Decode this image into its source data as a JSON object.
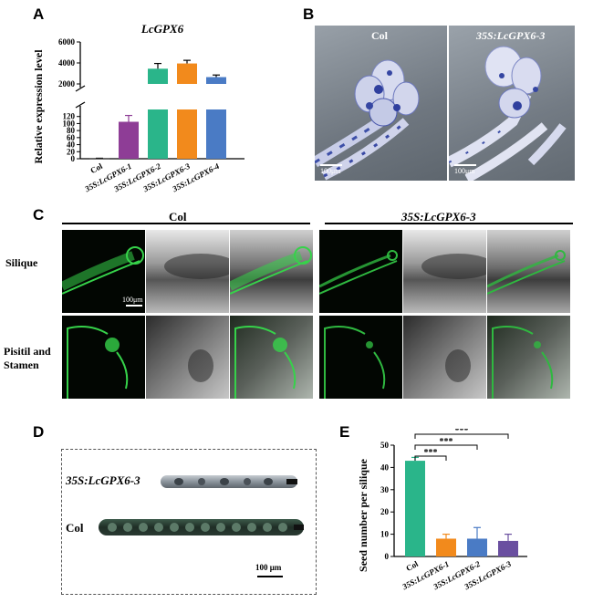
{
  "panels": {
    "a": "A",
    "b": "B",
    "c": "C",
    "d": "D",
    "e": "E"
  },
  "panel_a": {
    "chart_data": {
      "type": "bar",
      "title": "LcGPX6",
      "ylabel": "Relative expression level",
      "categories": [
        "Col",
        "35S:LcGPX6-1",
        "35S:LcGPX6-2",
        "35S:LcGPX6-3",
        "35S:LcGPX6-4"
      ],
      "values": [
        1,
        105,
        3450,
        3950,
        2650
      ],
      "errors": [
        0.5,
        18,
        500,
        300,
        200
      ],
      "colors": [
        "#1a1a1a",
        "#8e3d96",
        "#2ab58a",
        "#f28a1c",
        "#4a7bc5"
      ],
      "axis_break": {
        "lower": [
          0,
          140
        ],
        "upper": [
          2000,
          6000
        ]
      },
      "yticks_lower": [
        "0",
        "20",
        "40",
        "60",
        "80",
        "100",
        "120"
      ],
      "yticks_upper": [
        "2000",
        "4000",
        "6000"
      ]
    }
  },
  "panel_b": {
    "labels": [
      "Col",
      "35S:LcGPX6-3"
    ],
    "scale": "100μm"
  },
  "panel_c": {
    "headers": [
      "Col",
      "35S:LcGPX6-3"
    ],
    "rows": [
      "Silique",
      "Pisitil and Stamen"
    ],
    "scale": "100μm"
  },
  "panel_d": {
    "labels": [
      "35S:LcGPX6-3",
      "Col"
    ],
    "scale": "100 μm"
  },
  "panel_e": {
    "chart_data": {
      "type": "bar",
      "ylabel": "Seed number per silique",
      "categories": [
        "Col",
        "35S:LcGPX6-1",
        "35S:LcGPX6-2",
        "35S:LcGPX6-3"
      ],
      "values": [
        43,
        8,
        8,
        7
      ],
      "errors": [
        1.5,
        2,
        5,
        3
      ],
      "colors": [
        "#2ab58a",
        "#f28a1c",
        "#4a7bc5",
        "#6a4fa0"
      ],
      "ylim": [
        0,
        50
      ],
      "yticks": [
        "0",
        "10",
        "20",
        "30",
        "40",
        "50"
      ],
      "significance": "***"
    }
  }
}
